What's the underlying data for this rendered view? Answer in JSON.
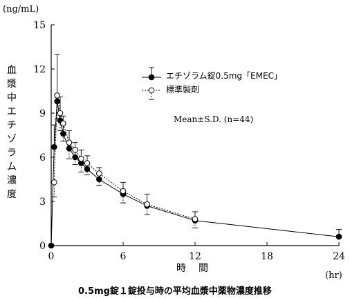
{
  "chart_data": {
    "type": "line",
    "title": "0.5mg錠１錠投与時の平均血漿中薬物濃度推移",
    "unit_label": "(ng/mL)",
    "ylabel_chars": [
      "血",
      "漿",
      "中",
      "エ",
      "チ",
      "ゾ",
      "ラ",
      "ム",
      "濃",
      "度"
    ],
    "xlabel": "時間",
    "xunit": "(hr)",
    "xlim": [
      0,
      24
    ],
    "ylim": [
      0,
      15
    ],
    "xticks": [
      0,
      6,
      12,
      18,
      24
    ],
    "yticks": [
      0,
      3,
      6,
      9,
      12,
      15
    ],
    "annotation": "Mean±S.D.  (n=44)",
    "series": [
      {
        "name": "エチゾラム錠0.5mg「EMEC」",
        "marker": "filled-circle",
        "line": "solid",
        "x": [
          0,
          0.25,
          0.5,
          0.75,
          1,
          1.5,
          2,
          2.5,
          3,
          4,
          6,
          8,
          12,
          24
        ],
        "y": [
          0,
          6.7,
          9.8,
          8.5,
          7.6,
          6.6,
          6.0,
          5.6,
          5.2,
          4.5,
          3.5,
          2.7,
          1.7,
          0.6
        ],
        "sd": [
          0,
          1.5,
          3.2,
          1.6,
          1.2,
          1.2,
          1.0,
          0.9,
          0.9,
          0.8,
          0.8,
          0.8,
          0.6,
          0.5
        ]
      },
      {
        "name": "標準製剤",
        "marker": "open-circle",
        "line": "dotted",
        "x": [
          0.25,
          0.5,
          0.75,
          1,
          1.5,
          2,
          2.5,
          3,
          4,
          6,
          8,
          12
        ],
        "y": [
          4.3,
          10.2,
          9.0,
          8.3,
          7.0,
          6.5,
          5.9,
          5.6,
          4.9,
          3.7,
          2.8,
          1.8
        ],
        "sd": [
          1.0,
          1.6,
          1.2,
          1.2,
          1.1,
          1.0,
          0.9,
          0.8,
          0.8,
          0.8,
          0.7,
          0.6
        ]
      }
    ]
  }
}
